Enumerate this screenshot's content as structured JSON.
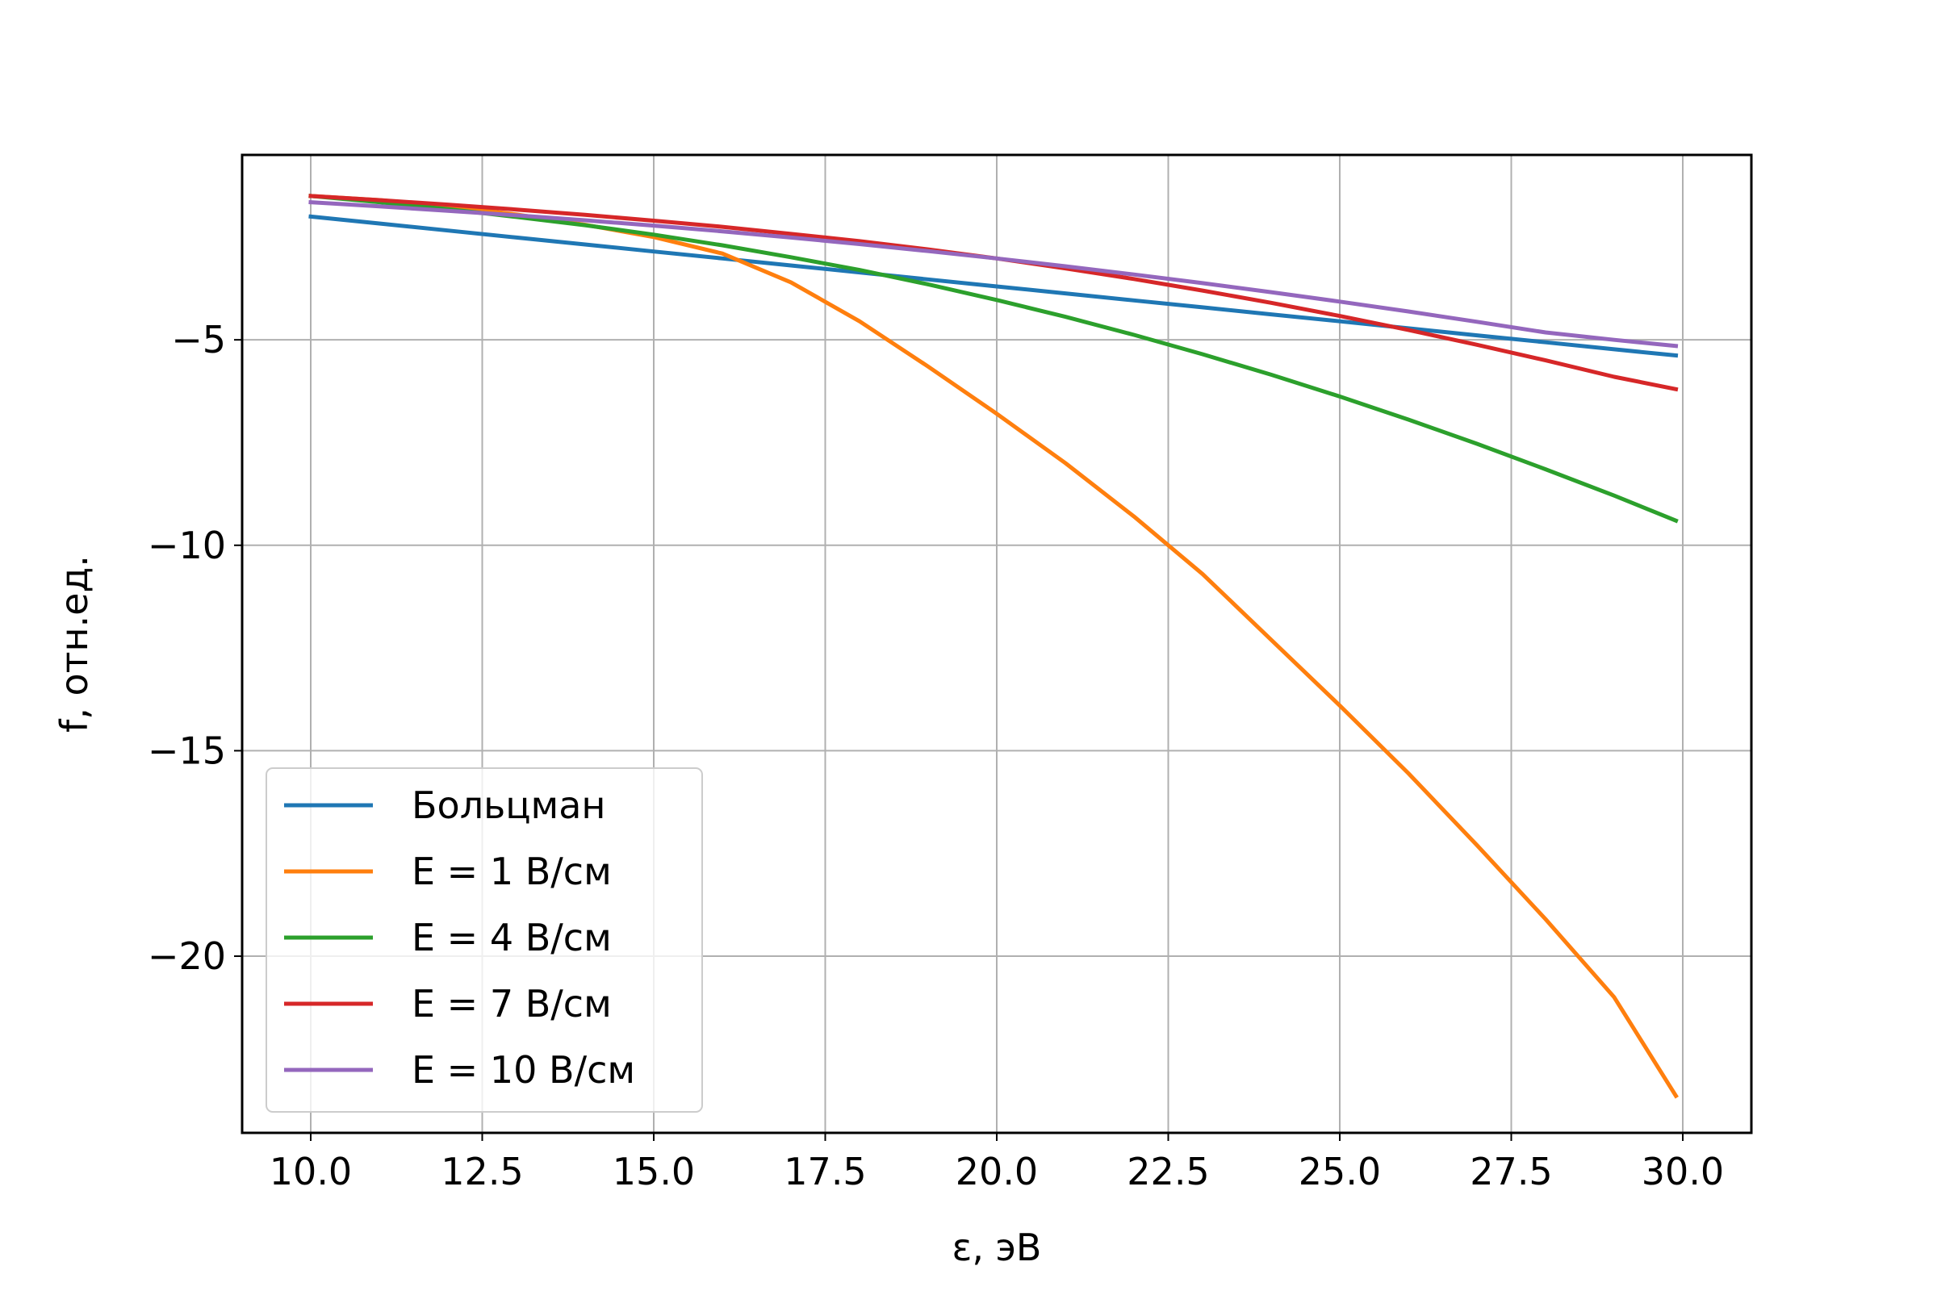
{
  "chart_data": {
    "type": "line",
    "title": "",
    "xlabel": "ε, эВ",
    "ylabel": "f, отн.ед.",
    "xlim": [
      9.0,
      31.0
    ],
    "ylim": [
      -24.3,
      -0.5
    ],
    "xticks": [
      "10.0",
      "12.5",
      "15.0",
      "17.5",
      "20.0",
      "22.5",
      "25.0",
      "27.5",
      "30.0"
    ],
    "xtick_values": [
      10.0,
      12.5,
      15.0,
      17.5,
      20.0,
      22.5,
      25.0,
      27.5,
      30.0
    ],
    "yticks": [
      "−5",
      "−10",
      "−15",
      "−20"
    ],
    "ytick_values": [
      -5,
      -10,
      -15,
      -20
    ],
    "grid": true,
    "legend_position": "lower-left",
    "x": [
      10,
      11,
      12,
      13,
      14,
      15,
      16,
      17,
      18,
      19,
      20,
      21,
      22,
      23,
      24,
      25,
      26,
      27,
      28,
      29,
      29.9
    ],
    "series": [
      {
        "name": "Больцман",
        "color": "#1f77b4",
        "values": [
          -2.0,
          -2.17,
          -2.34,
          -2.51,
          -2.68,
          -2.85,
          -3.02,
          -3.19,
          -3.36,
          -3.53,
          -3.7,
          -3.87,
          -4.04,
          -4.21,
          -4.38,
          -4.55,
          -4.72,
          -4.89,
          -5.06,
          -5.23,
          -5.38
        ]
      },
      {
        "name": "E = 1 В/см",
        "color": "#ff7f0e",
        "values": [
          -1.5,
          -1.6,
          -1.75,
          -1.95,
          -2.2,
          -2.5,
          -2.9,
          -3.6,
          -4.55,
          -5.65,
          -6.8,
          -8.0,
          -9.3,
          -10.7,
          -12.3,
          -13.9,
          -15.55,
          -17.3,
          -19.1,
          -21.0,
          -23.4
        ]
      },
      {
        "name": "E = 4 В/см",
        "color": "#2ca02c",
        "values": [
          -1.5,
          -1.65,
          -1.82,
          -2.01,
          -2.21,
          -2.44,
          -2.7,
          -2.99,
          -3.3,
          -3.65,
          -4.03,
          -4.44,
          -4.88,
          -5.35,
          -5.85,
          -6.38,
          -6.94,
          -7.53,
          -8.15,
          -8.79,
          -9.4
        ]
      },
      {
        "name": "E = 7 В/см",
        "color": "#d62728",
        "values": [
          -1.5,
          -1.6,
          -1.71,
          -1.83,
          -1.96,
          -2.1,
          -2.25,
          -2.42,
          -2.6,
          -2.8,
          -3.02,
          -3.26,
          -3.52,
          -3.8,
          -4.1,
          -4.42,
          -4.76,
          -5.12,
          -5.5,
          -5.9,
          -6.2
        ]
      },
      {
        "name": "E = 10 В/см",
        "color": "#9467bd",
        "values": [
          -1.65,
          -1.75,
          -1.86,
          -1.97,
          -2.09,
          -2.22,
          -2.36,
          -2.51,
          -2.67,
          -2.84,
          -3.02,
          -3.21,
          -3.41,
          -3.62,
          -3.84,
          -4.07,
          -4.31,
          -4.56,
          -4.82,
          -5.0,
          -5.15
        ]
      }
    ]
  }
}
